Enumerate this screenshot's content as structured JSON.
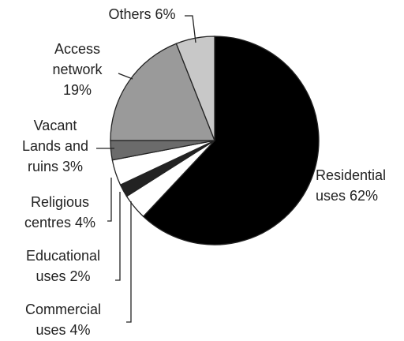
{
  "chart_data": {
    "type": "pie",
    "slices": [
      {
        "category": "Residential uses",
        "value": 62,
        "label_lines": [
          "Residential",
          "uses 62%"
        ],
        "color": "#000000"
      },
      {
        "category": "Commercial uses",
        "value": 4,
        "label_lines": [
          "Commercial",
          "uses 4%"
        ],
        "color": "#ffffff"
      },
      {
        "category": "Educational uses",
        "value": 2,
        "label_lines": [
          "Educational",
          "uses 2%"
        ],
        "color": "#222222"
      },
      {
        "category": "Religious centres",
        "value": 4,
        "label_lines": [
          "Religious",
          "centres 4%"
        ],
        "color": "#ffffff"
      },
      {
        "category": "Vacant Lands and ruins",
        "value": 3,
        "label_lines": [
          "Vacant",
          "Lands and",
          "ruins  3%"
        ],
        "color": "#6b6b6b"
      },
      {
        "category": "Access network",
        "value": 19,
        "label_lines": [
          "Access",
          "network",
          "19%"
        ],
        "color": "#9a9a9a"
      },
      {
        "category": "Others",
        "value": 6,
        "label_lines": [
          "Others 6%"
        ],
        "color": "#c8c8c8"
      }
    ]
  }
}
